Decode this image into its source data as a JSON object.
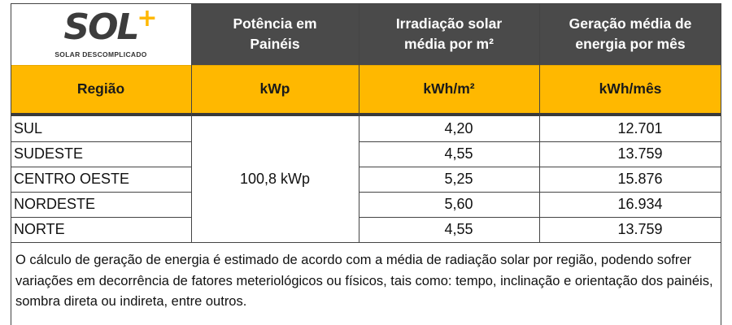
{
  "logo": {
    "word": "SOL",
    "plus": "+",
    "tagline": "SOLAR DESCOMPLICADO"
  },
  "header": {
    "col2": "Potência em Painéis",
    "col3": "Irradiação solar média por m²",
    "col4": "Geração média de energia por mês"
  },
  "units": {
    "col1": "Região",
    "col2": "kWp",
    "col3": "kWh/m²",
    "col4": "kWh/mês"
  },
  "power": "100,8 kWp",
  "rows": [
    {
      "region": "SUL",
      "irradiation": "4,20",
      "generation": "12.701"
    },
    {
      "region": "SUDESTE",
      "irradiation": "4,55",
      "generation": "13.759"
    },
    {
      "region": "CENTRO OESTE",
      "irradiation": "5,25",
      "generation": "15.876"
    },
    {
      "region": "NORDESTE",
      "irradiation": "5,60",
      "generation": "16.934"
    },
    {
      "region": "NORTE",
      "irradiation": "4,55",
      "generation": "13.759"
    }
  ],
  "note": "O cálculo de geração de energia é estimado de acordo com a média de radiação solar por região, podendo sofrer variações em decorrência de fatores meteriológicos ou físicos, tais como: tempo, inclinação e orientação dos painéis, sombra direta ou indireta, entre outros.",
  "colors": {
    "header_bg": "#4a4a4a",
    "accent_yellow": "#ffb800"
  }
}
